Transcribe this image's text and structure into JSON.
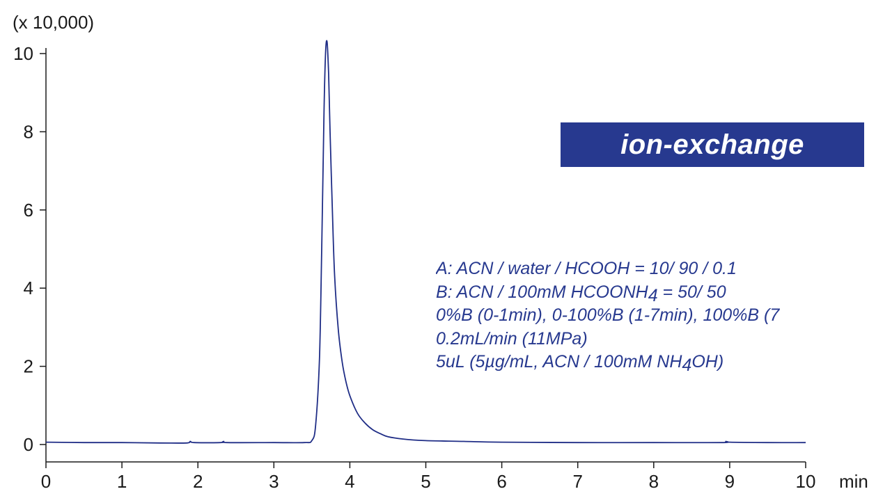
{
  "chart_data": {
    "type": "line",
    "title": "",
    "scale_label": "(x 10,000)",
    "xlabel": "min",
    "ylabel": "",
    "xlim": [
      0,
      10
    ],
    "ylim": [
      0,
      10
    ],
    "x_ticks": [
      "0",
      "1",
      "2",
      "3",
      "4",
      "5",
      "6",
      "7",
      "8",
      "9",
      "10"
    ],
    "y_ticks": [
      "0",
      "2",
      "4",
      "6",
      "8",
      "10"
    ],
    "grid": false,
    "series": [
      {
        "color": "#1f2d86",
        "x": [
          0,
          0.5,
          1.0,
          1.5,
          1.85,
          1.9,
          1.95,
          2.3,
          2.34,
          2.38,
          3.0,
          3.4,
          3.5,
          3.55,
          3.6,
          3.63,
          3.66,
          3.68,
          3.7,
          3.72,
          3.74,
          3.77,
          3.8,
          3.85,
          3.9,
          3.95,
          4.0,
          4.1,
          4.2,
          4.3,
          4.4,
          4.5,
          4.7,
          5.0,
          5.5,
          6.0,
          7.0,
          8.0,
          8.9,
          8.95,
          9.0,
          9.5,
          10.0
        ],
        "y": [
          0.06,
          0.05,
          0.05,
          0.04,
          0.04,
          0.08,
          0.05,
          0.05,
          0.08,
          0.05,
          0.05,
          0.05,
          0.1,
          0.5,
          2.2,
          5.0,
          8.5,
          10.0,
          10.3,
          9.5,
          8.0,
          6.0,
          4.3,
          2.9,
          2.1,
          1.6,
          1.25,
          0.8,
          0.55,
          0.38,
          0.28,
          0.2,
          0.14,
          0.1,
          0.08,
          0.06,
          0.05,
          0.05,
          0.05,
          0.08,
          0.06,
          0.05,
          0.05
        ]
      }
    ]
  },
  "mode_label": "ion-exchange",
  "conditions": {
    "mobile_phase_a": "A: ACN / water / HCOOH = 10/ 90 / 0.1",
    "mobile_phase_b_prefix": "B: ACN / 100mM HCOONH",
    "mobile_phase_b_sub": "4",
    "mobile_phase_b_suffix": " = 50/ 50",
    "gradient": "0%B (0-1min), 0-100%B (1-7min), 100%B (7",
    "flow": "0.2mL/min (11MPa)",
    "injection_prefix": "5uL (5µg/mL, ACN / 100mM NH",
    "injection_sub": "4",
    "injection_suffix": "OH)"
  }
}
